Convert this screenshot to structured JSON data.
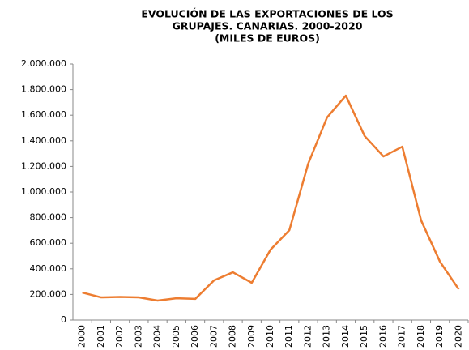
{
  "chart_data": {
    "type": "line",
    "title": [
      "EVOLUCIÓN DE LAS EXPORTACIONES DE LOS",
      "GRUPAJES. CANARIAS. 2000-2020",
      "(MILES DE EUROS)"
    ],
    "categories": [
      "2000",
      "2001",
      "2002",
      "2003",
      "2004",
      "2005",
      "2006",
      "2007",
      "2008",
      "2009",
      "2010",
      "2011",
      "2012",
      "2013",
      "2014",
      "2015",
      "2016",
      "2017",
      "2018",
      "2019",
      "2020"
    ],
    "series": [
      {
        "name": null,
        "color": "#ED7D31",
        "values": [
          215000,
          177000,
          180000,
          177000,
          152000,
          170000,
          165000,
          310000,
          373000,
          291000,
          550000,
          702000,
          1221000,
          1582000,
          1753000,
          1437000,
          1278000,
          1354000,
          778000,
          456000,
          240000
        ]
      }
    ],
    "ylim": [
      0,
      2000000
    ],
    "yticks": [
      0,
      {
        "value": 200000,
        "label": "200.000"
      },
      {
        "value": 400000,
        "label": "400.000"
      },
      {
        "value": 600000,
        "label": "600.000"
      },
      {
        "value": 800000,
        "label": "800.000"
      },
      {
        "value": 1000000,
        "label": "1.000.000"
      },
      {
        "value": 1200000,
        "label": "1.200.000"
      },
      {
        "value": 1400000,
        "label": "1.400.000"
      },
      {
        "value": 1600000,
        "label": "1.600.000"
      },
      {
        "value": 1800000,
        "label": "1.800.000"
      },
      {
        "value": 2000000,
        "label": "2.000.000"
      }
    ],
    "grid": false
  }
}
